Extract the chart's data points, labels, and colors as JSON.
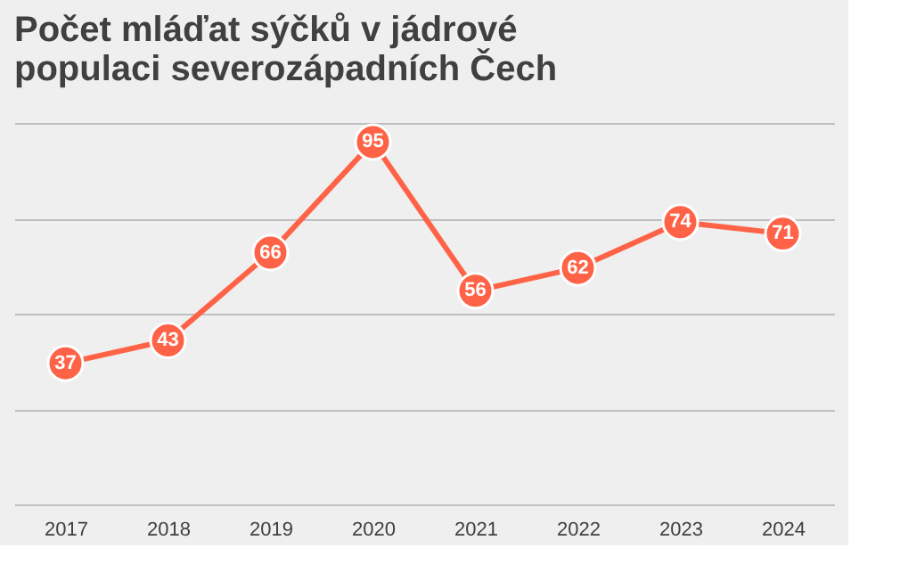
{
  "chart_data": {
    "type": "line",
    "title": "Počet mláďat sýčků v jádrové populaci severozápadních Čech",
    "categories": [
      "2017",
      "2018",
      "2019",
      "2020",
      "2021",
      "2022",
      "2023",
      "2024"
    ],
    "series": [
      {
        "color": "#ff6347",
        "values": [
          37,
          43,
          66,
          95,
          56,
          62,
          74,
          71
        ]
      }
    ],
    "ylim": [
      0,
      100
    ],
    "yticks": [
      {
        "value": 0,
        "label": null
      },
      {
        "value": 25,
        "label": null
      },
      {
        "value": 50,
        "label": null
      },
      {
        "value": 75,
        "label": null
      },
      {
        "value": 100,
        "label": null
      }
    ],
    "grid": "y",
    "tick_labels": "x",
    "data_labels": true,
    "marker": "circle",
    "line_style": "solid"
  }
}
